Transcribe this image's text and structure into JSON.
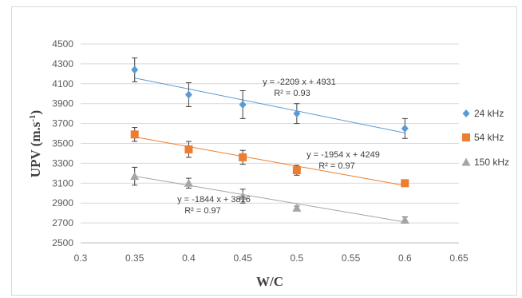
{
  "chart_data": {
    "type": "scatter",
    "xlabel": "W/C",
    "ylabel": "UPV (m.s",
    "ylabel_sup": "-1",
    "ylabel_end": ")",
    "xlim": [
      0.3,
      0.65
    ],
    "ylim": [
      2500,
      4500
    ],
    "x_ticks": [
      "0.3",
      "0.35",
      "0.4",
      "0.45",
      "0.5",
      "0.55",
      "0.6",
      "0.65"
    ],
    "y_ticks": [
      "2500",
      "2700",
      "2900",
      "3100",
      "3300",
      "3500",
      "3700",
      "3900",
      "4100",
      "4300",
      "4500"
    ],
    "grid": "horizontal",
    "legend_position": "right",
    "series": [
      {
        "name": "24 kHz",
        "color": "#5b9bd5",
        "marker": "diamond",
        "x": [
          0.35,
          0.4,
          0.45,
          0.5,
          0.6
        ],
        "y": [
          4240,
          3990,
          3890,
          3800,
          3650
        ],
        "err": [
          120,
          120,
          140,
          100,
          100
        ],
        "trend": {
          "slope": -2209,
          "intercept": 4931,
          "equation": "y = -2209 x + 4931",
          "r2": "R² = 0.93"
        }
      },
      {
        "name": "54 kHz",
        "color": "#ed7d31",
        "marker": "square",
        "x": [
          0.35,
          0.4,
          0.45,
          0.5,
          0.6
        ],
        "y": [
          3590,
          3440,
          3360,
          3230,
          3100
        ],
        "err": [
          70,
          80,
          70,
          50,
          20
        ],
        "trend": {
          "slope": -1954,
          "intercept": 4249,
          "equation": "y = -1954 x + 4249",
          "r2": "R² = 0.97"
        }
      },
      {
        "name": "150 kHz",
        "color": "#a5a5a5",
        "marker": "triangle",
        "x": [
          0.35,
          0.4,
          0.45,
          0.5,
          0.6
        ],
        "y": [
          3170,
          3100,
          2970,
          2850,
          2730
        ],
        "err": [
          90,
          50,
          70,
          20,
          30
        ],
        "trend": {
          "slope": -1844,
          "intercept": 3816,
          "equation": "y = -1844 x + 3816",
          "r2": "R² = 0.97"
        }
      }
    ]
  }
}
